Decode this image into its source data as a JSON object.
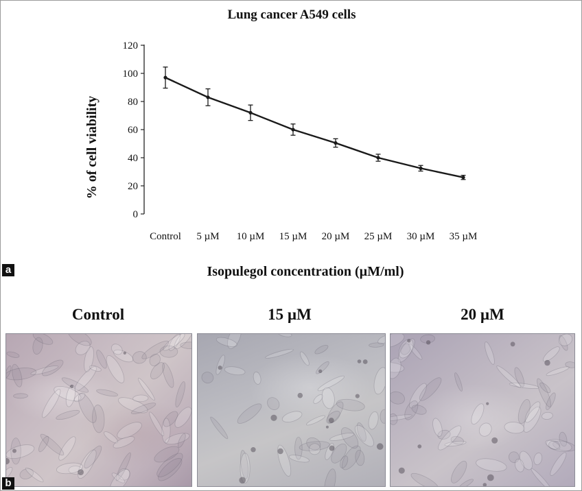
{
  "panel_a_tag": "a",
  "panel_b_tag": "b",
  "chart_data": {
    "type": "line",
    "title": "Lung cancer A549 cells",
    "xlabel": "Isopulegol concentration (µM/ml)",
    "ylabel": "% of cell viability",
    "categories": [
      "Control",
      "5 µM",
      "10 µM",
      "15 µM",
      "20 µM",
      "25 µM",
      "30 µM",
      "35 µM"
    ],
    "series": [
      {
        "values": [
          97,
          83,
          72,
          60,
          50.5,
          40,
          32.5,
          26
        ],
        "errors": [
          7.5,
          6,
          5.5,
          4,
          3,
          2.5,
          2,
          1.5
        ]
      }
    ],
    "yticks": [
      0,
      20,
      40,
      60,
      80,
      100,
      120
    ],
    "ylim": [
      0,
      120
    ],
    "grid": false,
    "legend": "none",
    "line_color": "#1a1a1a"
  },
  "micrographs": [
    {
      "label": "Control"
    },
    {
      "label": "15 µM"
    },
    {
      "label": "20 µM"
    }
  ]
}
